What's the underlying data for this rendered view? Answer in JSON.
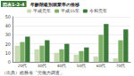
{
  "chart_data": {
    "type": "bar",
    "label": "図表1-2-4",
    "title": "年齢階級別就業率の推移",
    "categories": [
      "20代",
      "30代",
      "40代",
      "50代",
      "60代",
      "70代"
    ],
    "series": [
      {
        "name": "平成元年",
        "color": "#c8d9b4",
        "values": [
          18,
          14,
          10,
          8,
          6,
          4
        ]
      },
      {
        "name": "平成15年",
        "color": "#7fb069",
        "values": [
          22,
          18,
          14,
          12,
          30,
          24
        ]
      },
      {
        "name": "令和元年",
        "color": "#3d7a3a",
        "values": [
          28,
          24,
          20,
          16,
          42,
          36
        ]
      }
    ],
    "ylim": [
      0,
      50
    ],
    "yticks": [
      0,
      10,
      20,
      30,
      40,
      50
    ],
    "grid": true,
    "legend": "top",
    "note": "（出典）総務省「労働力調査」"
  }
}
